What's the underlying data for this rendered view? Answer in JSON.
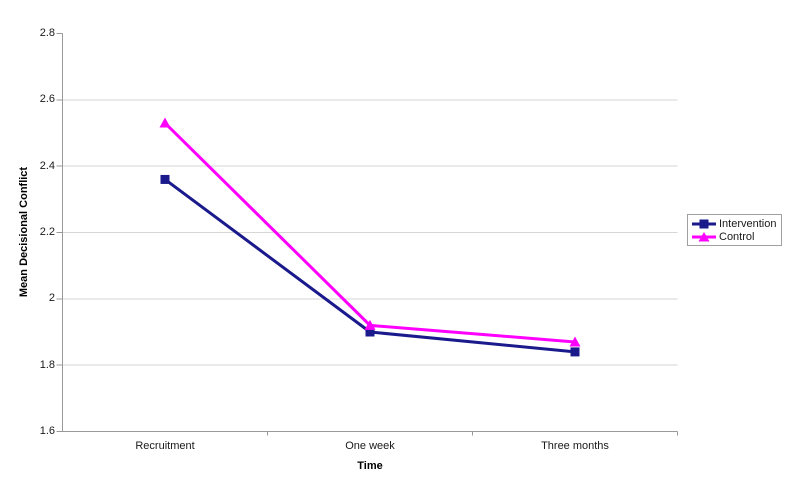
{
  "chart_data": {
    "type": "line",
    "title": "",
    "xlabel": "Time",
    "ylabel": "Mean Decisional Conflict",
    "categories": [
      "Recruitment",
      "One week",
      "Three months"
    ],
    "series": [
      {
        "name": "Intervention",
        "marker": "square",
        "color": "#1a1a8c",
        "values": [
          2.36,
          1.9,
          1.84
        ]
      },
      {
        "name": "Control",
        "marker": "triangle",
        "color": "#ff00ff",
        "values": [
          2.53,
          1.92,
          1.87
        ]
      }
    ],
    "ylim": [
      1.6,
      2.8
    ],
    "ytick_labels": [
      "2.8",
      "2.6",
      "2.4",
      "2.2",
      "2",
      "1.8",
      "1.6"
    ],
    "grid": true,
    "legend_position": "right"
  },
  "colors": {
    "axis": "#999999",
    "gridline": "#d6d6d6",
    "legend_border": "#a0a0a0",
    "text": "#1a1a1a",
    "background": "#ffffff"
  }
}
